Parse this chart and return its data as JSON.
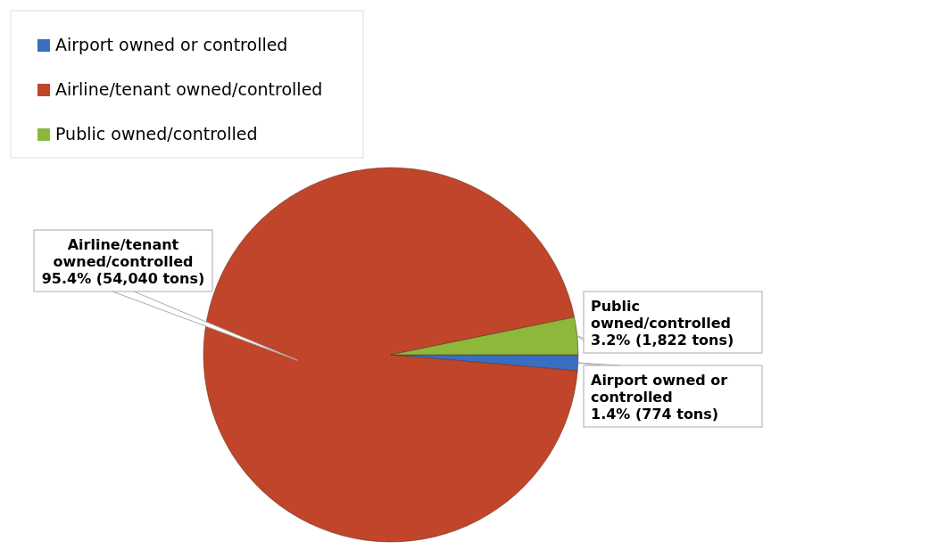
{
  "chart_data": {
    "type": "pie",
    "categories": [
      "Airport owned or controlled",
      "Airline/tenant owned/controlled",
      "Public owned/controlled"
    ],
    "values": [
      774,
      54040,
      1822
    ],
    "value_labels": [
      "1.4% (774 tons)",
      "95.4% (54,040 tons)",
      "3.2% (1,822 tons)"
    ],
    "colors": [
      "#3a6ec0",
      "#c0452a",
      "#8db83c"
    ],
    "legend": "top left"
  }
}
